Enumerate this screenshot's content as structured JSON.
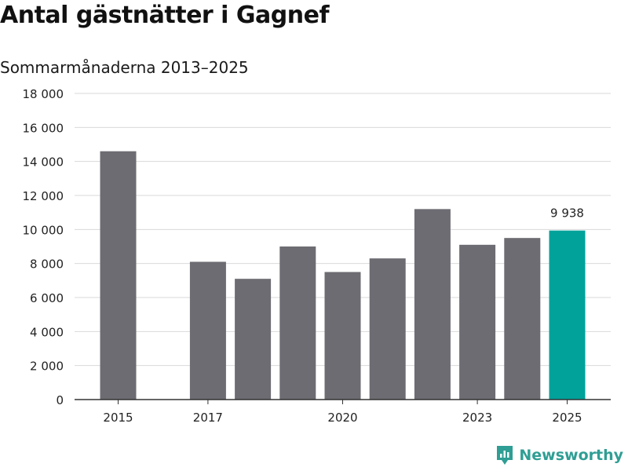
{
  "header": {
    "title": "Antal gästnätter i Gagnef",
    "subtitle": "Sommarmånaderna 2013–2025"
  },
  "branding": {
    "name": "Newsworthy",
    "icon": "bar-chart-logo-icon",
    "color": "#2f9e94"
  },
  "colors": {
    "bar": "#6d6c72",
    "highlight": "#00a29a",
    "grid": "#d9d9d9",
    "axis": "#333333"
  },
  "chart_data": {
    "type": "bar",
    "categories": [
      "2015",
      "2016",
      "2017",
      "2018",
      "2019",
      "2020",
      "2021",
      "2022",
      "2023",
      "2024",
      "2025"
    ],
    "values": [
      14600,
      null,
      8100,
      7100,
      9000,
      7500,
      8300,
      11200,
      9100,
      9500,
      9938
    ],
    "tick_labels_x": [
      "2015",
      "2017",
      "2020",
      "2023",
      "2025"
    ],
    "tick_labels_y": [
      "0",
      "2 000",
      "4 000",
      "6 000",
      "8 000",
      "10 000",
      "12 000",
      "14 000",
      "16 000",
      "18 000"
    ],
    "ylim": [
      0,
      18000
    ],
    "yticks": [
      0,
      2000,
      4000,
      6000,
      8000,
      10000,
      12000,
      14000,
      16000,
      18000
    ],
    "highlight_category": "2025",
    "data_labels": [
      {
        "category": "2025",
        "text": "9 938"
      }
    ],
    "grid": true,
    "legend": "none"
  }
}
